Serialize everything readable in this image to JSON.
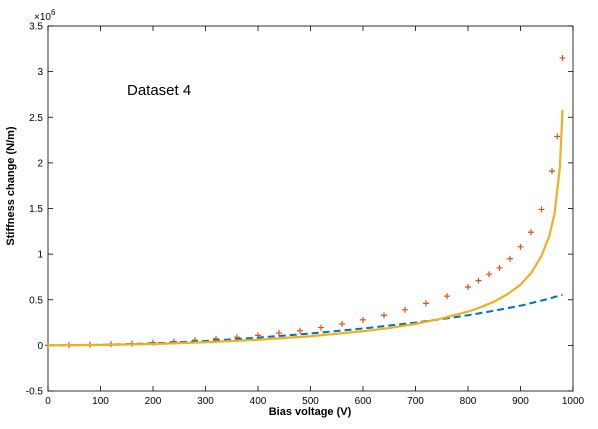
{
  "chart_data": {
    "type": "line",
    "title": "",
    "annotation": "Dataset 4",
    "xlabel": "Bias voltage    (V)",
    "ylabel": "Stiffness change    (N/m)",
    "y_multiplier_base": "×10",
    "y_multiplier_exp": "6",
    "xlim": [
      0,
      1000
    ],
    "ylim": [
      -0.5,
      3.5
    ],
    "x_ticks": [
      0,
      100,
      200,
      300,
      400,
      500,
      600,
      700,
      800,
      900,
      1000
    ],
    "x_tick_labels": [
      "0",
      "100",
      "200",
      "300",
      "400",
      "500",
      "600",
      "700",
      "800",
      "900",
      "1000"
    ],
    "y_ticks": [
      -0.5,
      0,
      0.5,
      1,
      1.5,
      2,
      2.5,
      3,
      3.5
    ],
    "y_tick_labels": [
      "-0.5",
      "0",
      "0.5",
      "1",
      "1.5",
      "2",
      "2.5",
      "3",
      "3.5"
    ],
    "grid": false,
    "series": [
      {
        "style": "markers-plus",
        "color": "#d95319",
        "x": [
          0,
          40,
          80,
          120,
          160,
          200,
          240,
          280,
          320,
          360,
          400,
          440,
          480,
          520,
          560,
          600,
          640,
          680,
          720,
          760,
          800,
          820,
          840,
          860,
          880,
          900,
          920,
          940,
          960,
          970,
          980
        ],
        "y": [
          0,
          0.003,
          0.008,
          0.013,
          0.02,
          0.03,
          0.043,
          0.057,
          0.073,
          0.09,
          0.11,
          0.135,
          0.16,
          0.195,
          0.235,
          0.28,
          0.33,
          0.39,
          0.46,
          0.54,
          0.64,
          0.71,
          0.78,
          0.85,
          0.95,
          1.08,
          1.24,
          1.49,
          1.91,
          2.29,
          3.15
        ]
      },
      {
        "style": "dashed",
        "color": "#0072bd",
        "x": [
          0,
          100,
          200,
          300,
          400,
          500,
          600,
          700,
          750,
          800,
          850,
          900,
          950,
          980
        ],
        "y": [
          0,
          0.006,
          0.022,
          0.048,
          0.085,
          0.13,
          0.185,
          0.25,
          0.288,
          0.33,
          0.38,
          0.435,
          0.505,
          0.555
        ]
      },
      {
        "style": "solid",
        "color": "#edb120",
        "x": [
          0,
          100,
          200,
          300,
          400,
          500,
          600,
          650,
          700,
          750,
          800,
          825,
          850,
          875,
          900,
          920,
          940,
          955,
          965,
          975,
          980
        ],
        "y": [
          0,
          0.004,
          0.015,
          0.034,
          0.062,
          0.1,
          0.155,
          0.19,
          0.235,
          0.295,
          0.37,
          0.42,
          0.48,
          0.56,
          0.665,
          0.79,
          0.98,
          1.2,
          1.45,
          1.95,
          2.58
        ]
      }
    ]
  }
}
